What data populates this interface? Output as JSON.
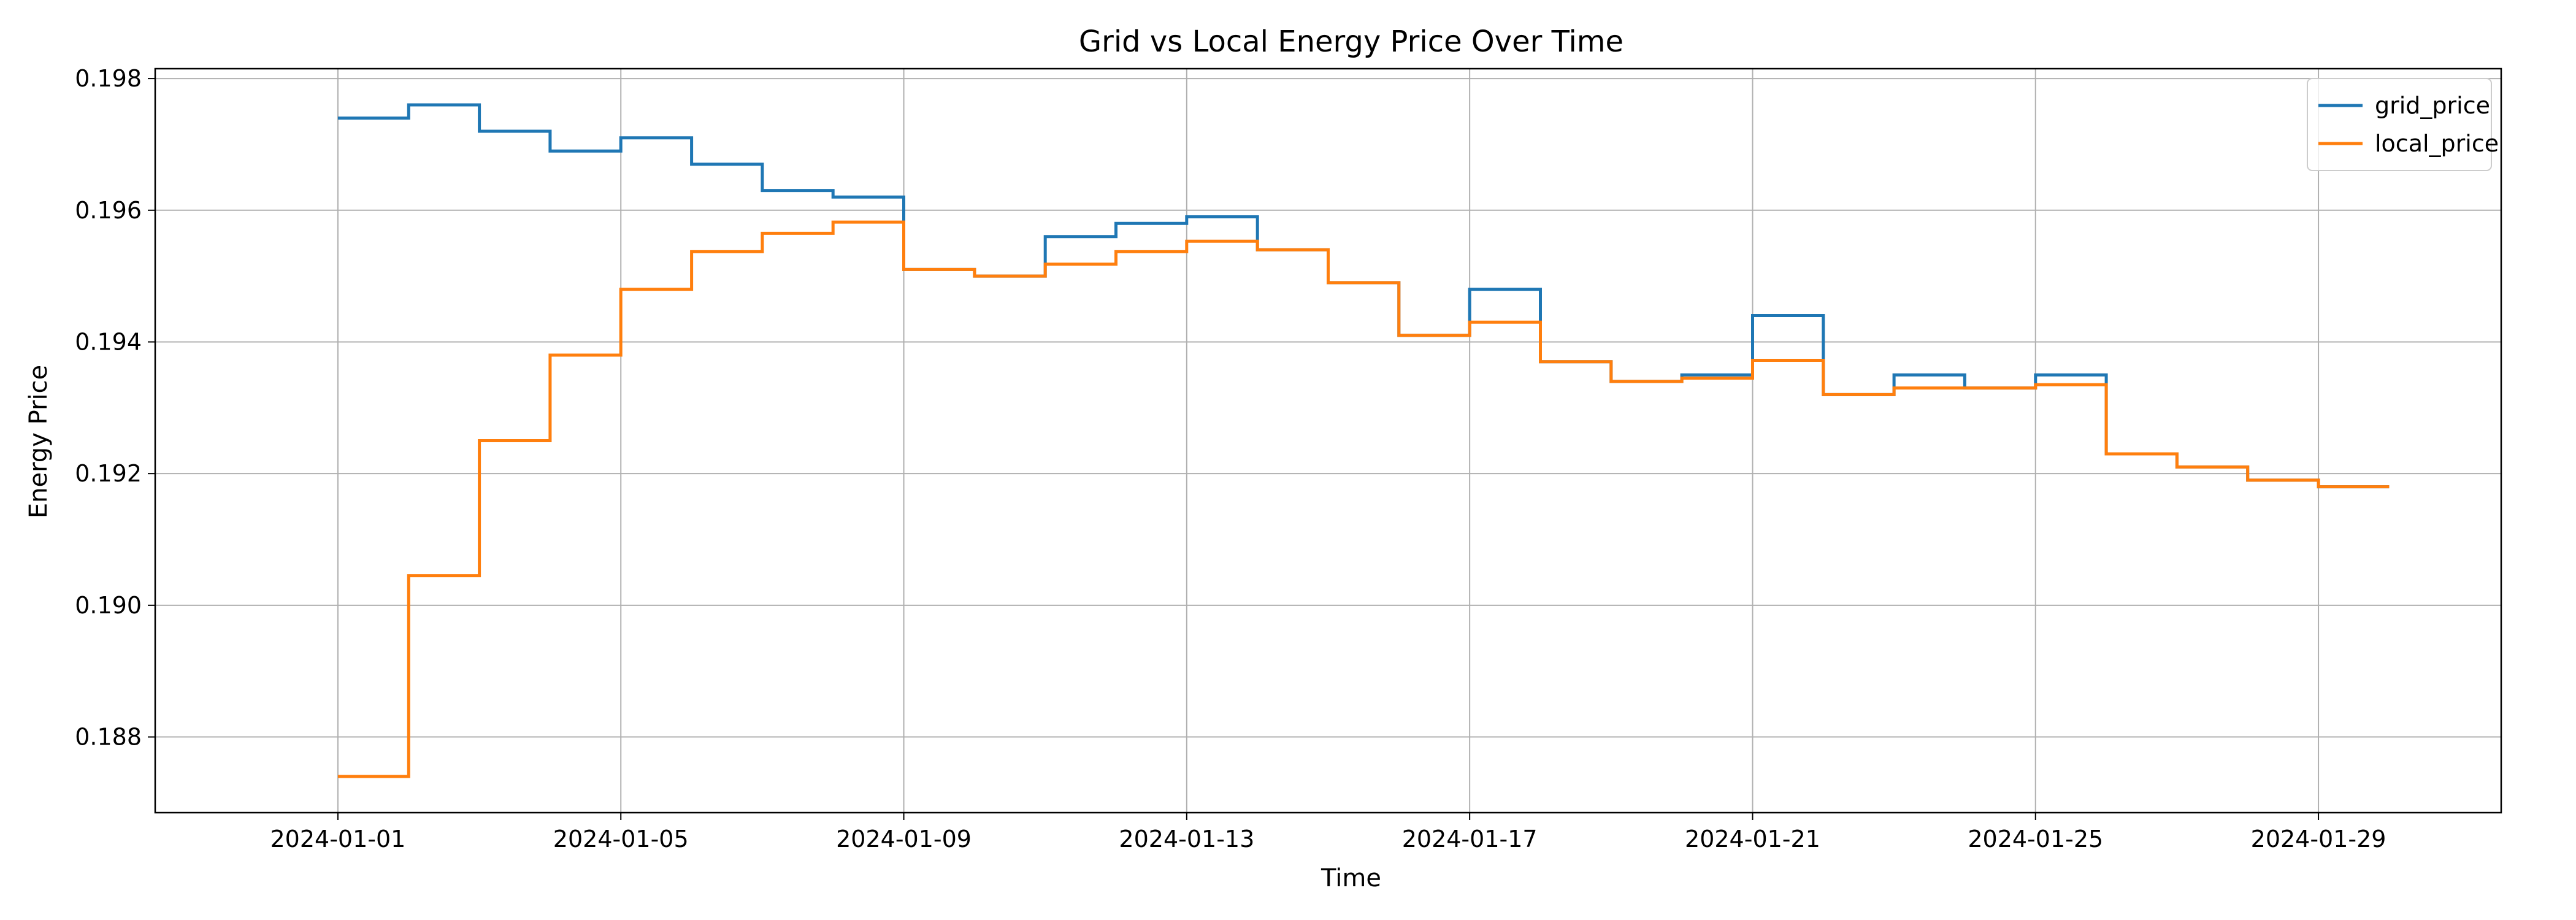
{
  "chart_data": {
    "type": "line",
    "title": "Grid vs Local Energy Price Over Time",
    "xlabel": "Time",
    "ylabel": "Energy Price",
    "x_range": [
      "2023-12-29T10:00",
      "2024-01-31T14:00"
    ],
    "ylim": [
      0.18685,
      0.19815
    ],
    "x_ticks": [
      "2024-01-01",
      "2024-01-05",
      "2024-01-09",
      "2024-01-13",
      "2024-01-17",
      "2024-01-21",
      "2024-01-25",
      "2024-01-29"
    ],
    "y_ticks": [
      0.188,
      0.19,
      0.192,
      0.194,
      0.196,
      0.198
    ],
    "y_tick_labels": [
      "0.188",
      "0.190",
      "0.192",
      "0.194",
      "0.196",
      "0.198"
    ],
    "grid": true,
    "legend_position": "top-right",
    "step": "post",
    "x": [
      "2024-01-01",
      "2024-01-02",
      "2024-01-03",
      "2024-01-04",
      "2024-01-05",
      "2024-01-06",
      "2024-01-07",
      "2024-01-08",
      "2024-01-09",
      "2024-01-10",
      "2024-01-11",
      "2024-01-12",
      "2024-01-13",
      "2024-01-14",
      "2024-01-15",
      "2024-01-16",
      "2024-01-17",
      "2024-01-18",
      "2024-01-19",
      "2024-01-20",
      "2024-01-21",
      "2024-01-22",
      "2024-01-23",
      "2024-01-24",
      "2024-01-25",
      "2024-01-26",
      "2024-01-27",
      "2024-01-28",
      "2024-01-29",
      "2024-01-30"
    ],
    "series": [
      {
        "name": "grid_price",
        "color": "#1f77b4",
        "values": [
          0.1974,
          0.1976,
          0.1972,
          0.1969,
          0.1971,
          0.1967,
          0.1963,
          0.1962,
          0.1951,
          0.195,
          0.1956,
          0.1958,
          0.1959,
          0.1954,
          0.1949,
          0.1941,
          0.1948,
          0.1937,
          0.1934,
          0.1935,
          0.1944,
          0.1932,
          0.1935,
          0.1933,
          0.1935,
          0.1923,
          0.1921,
          0.1919,
          0.1918,
          0.1918
        ]
      },
      {
        "name": "local_price",
        "color": "#ff7f0e",
        "values": [
          0.1874,
          0.19045,
          0.1925,
          0.1938,
          0.1948,
          0.19537,
          0.19565,
          0.19582,
          0.1951,
          0.195,
          0.19518,
          0.19537,
          0.19553,
          0.1954,
          0.1949,
          0.1941,
          0.1943,
          0.1937,
          0.1934,
          0.19345,
          0.19372,
          0.1932,
          0.1933,
          0.1933,
          0.19335,
          0.1923,
          0.1921,
          0.1919,
          0.1918,
          0.1918
        ]
      }
    ]
  }
}
